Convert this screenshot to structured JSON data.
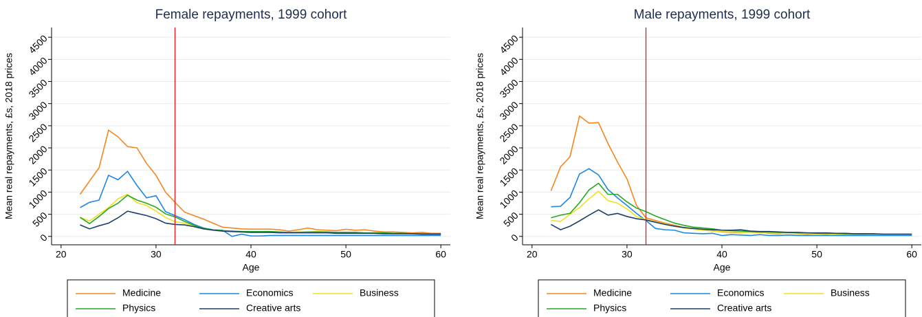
{
  "chart_data": [
    {
      "type": "line",
      "title": "Female repayments, 1999 cohort",
      "xlabel": "Age",
      "ylabel": "Mean real repayments, £s, 2018 prices",
      "x": [
        22,
        23,
        24,
        25,
        26,
        27,
        28,
        29,
        30,
        31,
        32,
        33,
        34,
        35,
        36,
        37,
        38,
        39,
        40,
        41,
        42,
        43,
        44,
        45,
        46,
        47,
        48,
        49,
        50,
        51,
        52,
        53,
        54,
        55,
        56,
        57,
        58,
        59,
        60
      ],
      "series": [
        {
          "name": "Medicine",
          "color": "#f5861f",
          "values": [
            950,
            1250,
            1550,
            2400,
            2250,
            2030,
            2000,
            1650,
            1380,
            1000,
            770,
            550,
            470,
            390,
            300,
            210,
            190,
            170,
            165,
            165,
            165,
            150,
            120,
            150,
            190,
            150,
            140,
            130,
            160,
            140,
            150,
            120,
            100,
            100,
            90,
            80,
            90,
            70,
            70
          ]
        },
        {
          "name": "Economics",
          "color": "#1a85e3",
          "values": [
            650,
            770,
            820,
            1380,
            1280,
            1470,
            1150,
            870,
            920,
            560,
            470,
            380,
            270,
            190,
            150,
            140,
            0,
            50,
            10,
            10,
            20,
            20,
            20,
            20,
            20,
            20,
            20,
            20,
            20,
            20,
            20,
            20,
            20,
            20,
            20,
            20,
            20,
            20,
            20
          ]
        },
        {
          "name": "Business",
          "color": "#f2e01c",
          "values": [
            430,
            350,
            500,
            650,
            850,
            950,
            760,
            700,
            570,
            430,
            330,
            300,
            230,
            170,
            140,
            120,
            110,
            100,
            100,
            100,
            100,
            90,
            90,
            100,
            100,
            110,
            100,
            90,
            90,
            80,
            80,
            70,
            70,
            60,
            60,
            60,
            60,
            60,
            60
          ]
        },
        {
          "name": "Physics",
          "color": "#22a722",
          "values": [
            430,
            290,
            450,
            630,
            750,
            930,
            820,
            750,
            660,
            510,
            440,
            340,
            250,
            180,
            150,
            130,
            120,
            110,
            110,
            110,
            110,
            100,
            90,
            90,
            100,
            100,
            100,
            90,
            90,
            90,
            80,
            80,
            80,
            70,
            70,
            60,
            60,
            60,
            60
          ]
        },
        {
          "name": "Creative arts",
          "color": "#1b3f6b",
          "values": [
            260,
            170,
            240,
            300,
            420,
            570,
            520,
            470,
            400,
            300,
            270,
            260,
            220,
            170,
            140,
            120,
            110,
            100,
            90,
            90,
            90,
            80,
            80,
            80,
            80,
            80,
            80,
            70,
            70,
            70,
            70,
            70,
            60,
            60,
            60,
            60,
            50,
            50,
            50
          ]
        }
      ],
      "xlim": [
        19,
        61
      ],
      "xticks": [
        20,
        30,
        40,
        50,
        60
      ],
      "ylim": [
        -190,
        4720
      ],
      "yticks": [
        0,
        500,
        1000,
        1500,
        2000,
        2500,
        3000,
        3500,
        4000,
        4500
      ],
      "grid": true,
      "vline": 32,
      "vline_color": "#e8141c",
      "legend_position": "bottom"
    },
    {
      "type": "line",
      "title": "Male repayments, 1999 cohort",
      "xlabel": "Age",
      "ylabel": "Mean real repayments, £s, 2018 prices",
      "x": [
        22,
        23,
        24,
        25,
        26,
        27,
        28,
        29,
        30,
        31,
        32,
        33,
        34,
        35,
        36,
        37,
        38,
        39,
        40,
        41,
        42,
        43,
        44,
        45,
        46,
        47,
        48,
        49,
        50,
        51,
        52,
        53,
        54,
        55,
        56,
        57,
        58,
        59,
        60
      ],
      "series": [
        {
          "name": "Medicine",
          "color": "#f5861f",
          "values": [
            1030,
            1570,
            1800,
            2720,
            2560,
            2570,
            2100,
            1680,
            1300,
            700,
            420,
            360,
            300,
            250,
            200,
            170,
            150,
            130,
            100,
            90,
            80,
            100,
            90,
            70,
            60,
            80,
            60,
            50,
            60,
            50,
            60,
            50,
            40,
            40,
            40,
            40,
            40,
            40,
            40
          ]
        },
        {
          "name": "Economics",
          "color": "#1a85e3",
          "values": [
            670,
            680,
            880,
            1410,
            1530,
            1390,
            1060,
            870,
            700,
            520,
            360,
            180,
            150,
            140,
            80,
            70,
            60,
            70,
            20,
            40,
            30,
            20,
            40,
            20,
            20,
            30,
            20,
            20,
            20,
            20,
            20,
            20,
            20,
            20,
            20,
            20,
            20,
            20,
            20
          ]
        },
        {
          "name": "Business",
          "color": "#f2e01c",
          "values": [
            360,
            340,
            500,
            650,
            850,
            1020,
            810,
            750,
            620,
            450,
            380,
            330,
            280,
            230,
            190,
            160,
            140,
            120,
            110,
            100,
            90,
            90,
            80,
            80,
            70,
            70,
            60,
            60,
            60,
            60,
            50,
            50,
            50,
            50,
            40,
            40,
            40,
            40,
            40
          ]
        },
        {
          "name": "Physics",
          "color": "#22a722",
          "values": [
            420,
            480,
            520,
            760,
            1050,
            1200,
            950,
            950,
            780,
            640,
            560,
            460,
            380,
            300,
            250,
            210,
            190,
            170,
            140,
            130,
            120,
            110,
            100,
            100,
            90,
            90,
            80,
            80,
            70,
            70,
            70,
            60,
            60,
            60,
            50,
            50,
            50,
            50,
            50
          ]
        },
        {
          "name": "Creative arts",
          "color": "#1b3f6b",
          "values": [
            270,
            150,
            230,
            350,
            480,
            600,
            480,
            520,
            450,
            400,
            370,
            320,
            270,
            230,
            200,
            180,
            160,
            150,
            140,
            140,
            150,
            120,
            110,
            110,
            100,
            90,
            90,
            80,
            80,
            80,
            70,
            70,
            60,
            60,
            60,
            50,
            50,
            50,
            50
          ]
        }
      ],
      "xlim": [
        19,
        61
      ],
      "xticks": [
        20,
        30,
        40,
        50,
        60
      ],
      "ylim": [
        -190,
        4720
      ],
      "yticks": [
        0,
        500,
        1000,
        1500,
        2000,
        2500,
        3000,
        3500,
        4000,
        4500
      ],
      "grid": true,
      "vline": 32,
      "vline_color": "#e8141c",
      "legend_position": "bottom"
    }
  ]
}
